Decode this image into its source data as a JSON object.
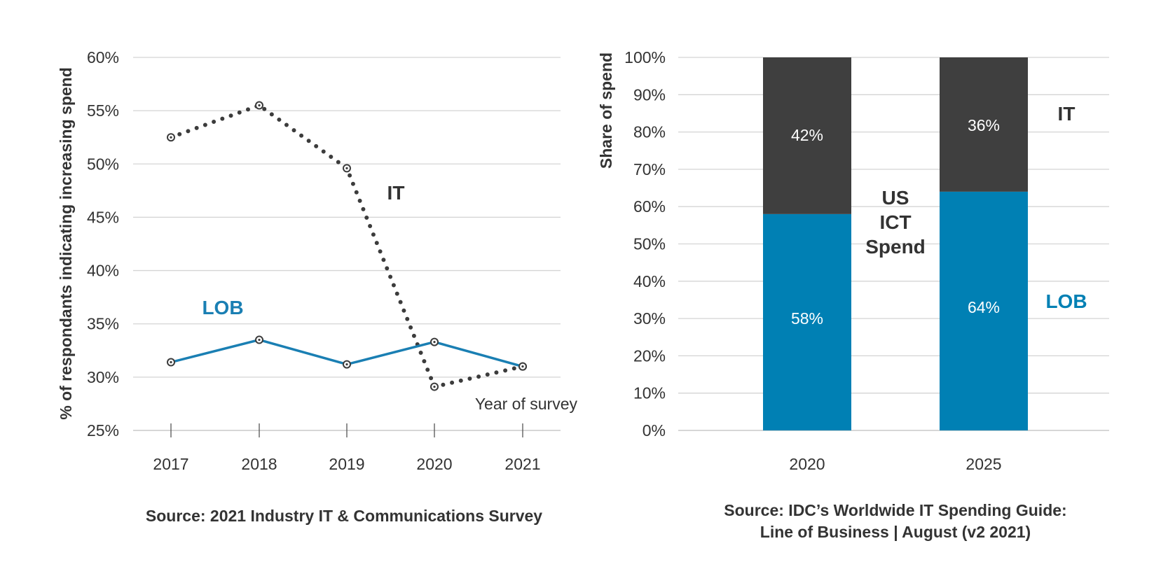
{
  "chart_data": [
    {
      "type": "line",
      "ylabel": "% of respondants indicating increasing spend",
      "xlabel": "Year of survey",
      "x": [
        "2017",
        "2018",
        "2019",
        "2020",
        "2021"
      ],
      "ylim": [
        25,
        60
      ],
      "yticks": [
        "25%",
        "30%",
        "35%",
        "40%",
        "45%",
        "50%",
        "55%",
        "60%"
      ],
      "grid": true,
      "series": [
        {
          "name": "IT",
          "values": [
            52.5,
            55.5,
            49.6,
            29.1,
            31.0
          ],
          "color": "#3c3c3c",
          "style": "dotted"
        },
        {
          "name": "LOB",
          "values": [
            31.4,
            33.5,
            31.2,
            33.3,
            31.0
          ],
          "color": "#1a7fb3",
          "style": "solid"
        }
      ],
      "source": "Source: 2021 Industry IT & Communications Survey"
    },
    {
      "type": "bar",
      "stacked": true,
      "ylabel": "Share of spend",
      "categories": [
        "2020",
        "2025"
      ],
      "ylim": [
        0,
        100
      ],
      "yticks": [
        "0%",
        "10%",
        "20%",
        "30%",
        "40%",
        "50%",
        "60%",
        "70%",
        "80%",
        "90%",
        "100%"
      ],
      "grid": true,
      "series": [
        {
          "name": "LOB",
          "values": [
            58,
            64
          ],
          "labels": [
            "58%",
            "64%"
          ],
          "color": "#0080b4"
        },
        {
          "name": "IT",
          "values": [
            42,
            36
          ],
          "labels": [
            "42%",
            "36%"
          ],
          "color": "#3f3f3f"
        }
      ],
      "annotation": [
        "US",
        "ICT",
        "Spend"
      ],
      "source_lines": [
        "Source: IDC’s Worldwide IT Spending Guide:",
        "Line of Business | August (v2 2021)"
      ]
    }
  ]
}
